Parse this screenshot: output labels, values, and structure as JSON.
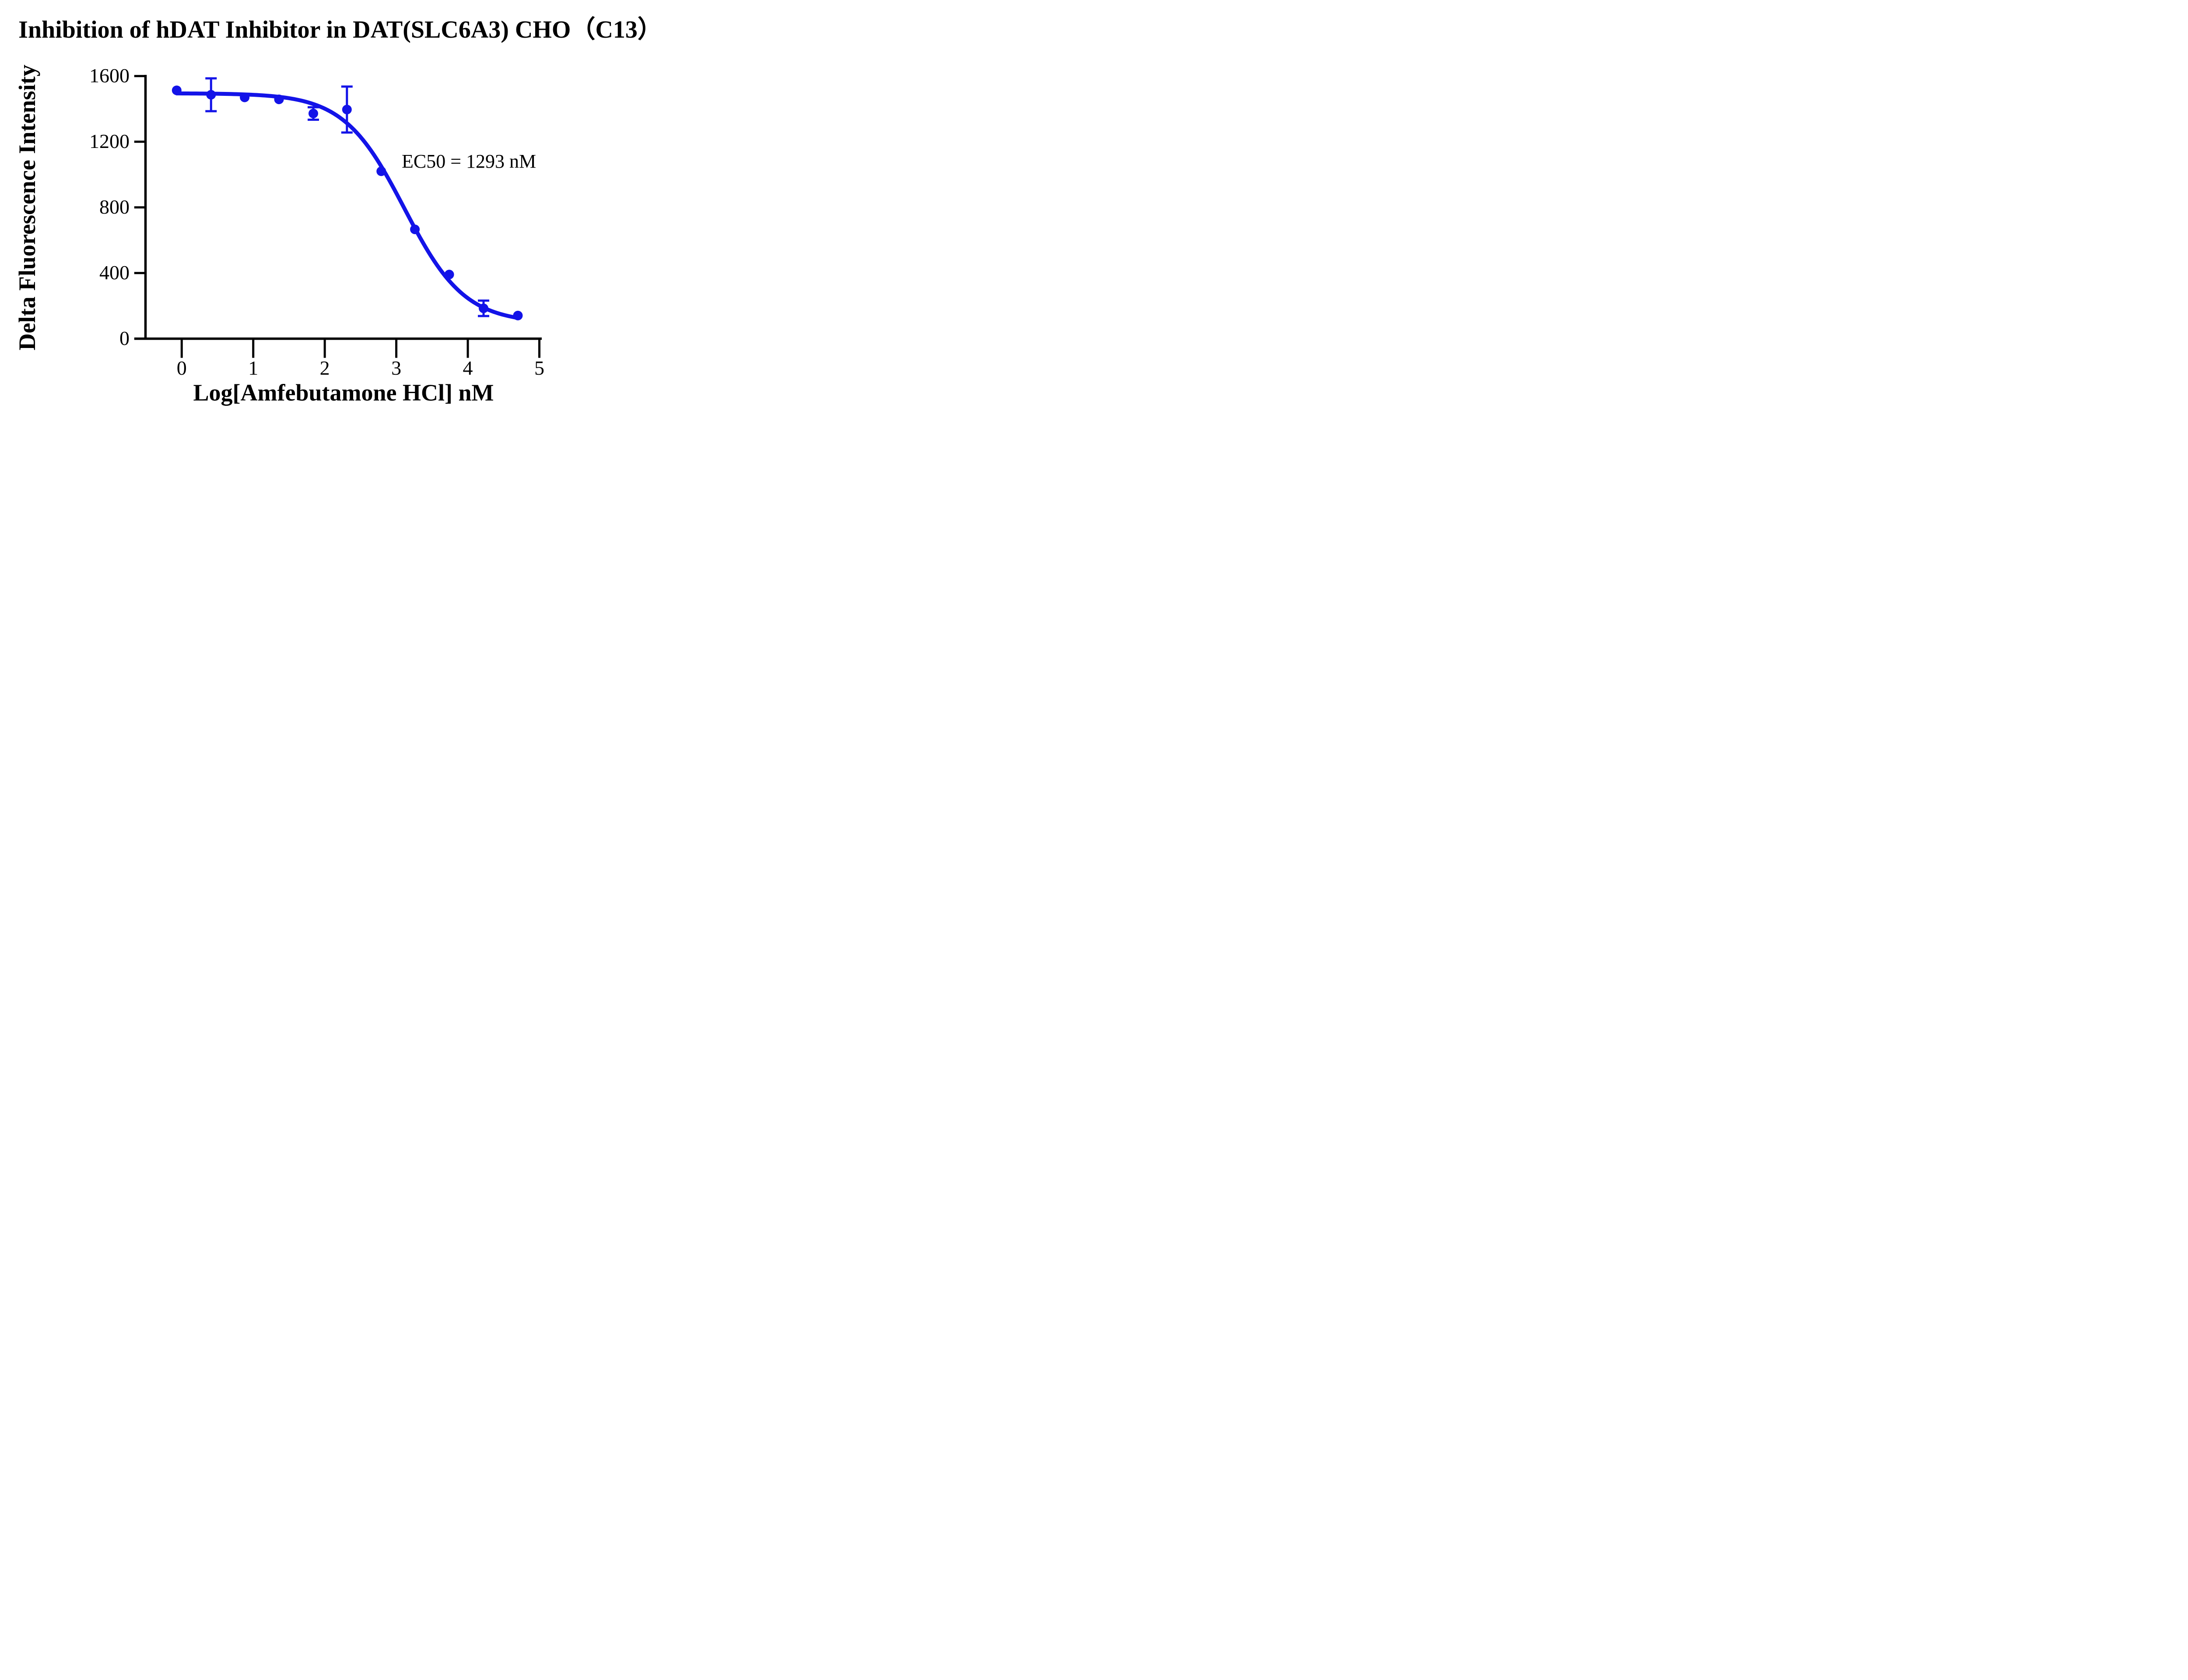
{
  "title": "Inhibition of hDAT Inhibitor in DAT(SLC6A3) CHO（C13）",
  "annotation": "EC50 = 1293 nM",
  "colors": {
    "series_blue": "#1313E8",
    "axis_black": "#000000",
    "background": "#FFFFFF"
  },
  "chart_data": {
    "type": "scatter",
    "title": "Inhibition of hDAT Inhibitor in DAT(SLC6A3) CHO（C13）",
    "xlabel": "Log[Amfebutamone HCl] nM",
    "ylabel": "Delta Fluorescence Intensity",
    "x_ticks": [
      0,
      1,
      2,
      3,
      4,
      5
    ],
    "y_ticks": [
      0,
      400,
      800,
      1200,
      1600
    ],
    "xlim": [
      -0.52,
      5.04
    ],
    "ylim": [
      0,
      1600
    ],
    "grid": false,
    "legend_position": "none",
    "annotation_text": "EC50 = 1293 nM",
    "series": [
      {
        "name": "Amfebutamone HCl",
        "color": "#1313E8",
        "marker": "circle",
        "x": [
          -0.07,
          0.41,
          0.88,
          1.36,
          1.84,
          2.31,
          2.79,
          3.26,
          3.74,
          4.22,
          4.7
        ],
        "y": [
          1513,
          1486,
          1470,
          1458,
          1372,
          1396,
          1020,
          666,
          391,
          185,
          141
        ],
        "y_err": [
          null,
          100,
          null,
          null,
          38,
          140,
          null,
          null,
          null,
          47,
          null
        ]
      }
    ],
    "fit_curve": {
      "model": "four_parameter_logistic_inhibition",
      "top": 1495,
      "bottom": 95,
      "log_ec50": 3.1116,
      "hill_slope": 1.03,
      "ec50_nM": 1293,
      "x_start": -0.07,
      "x_end": 4.7
    }
  }
}
